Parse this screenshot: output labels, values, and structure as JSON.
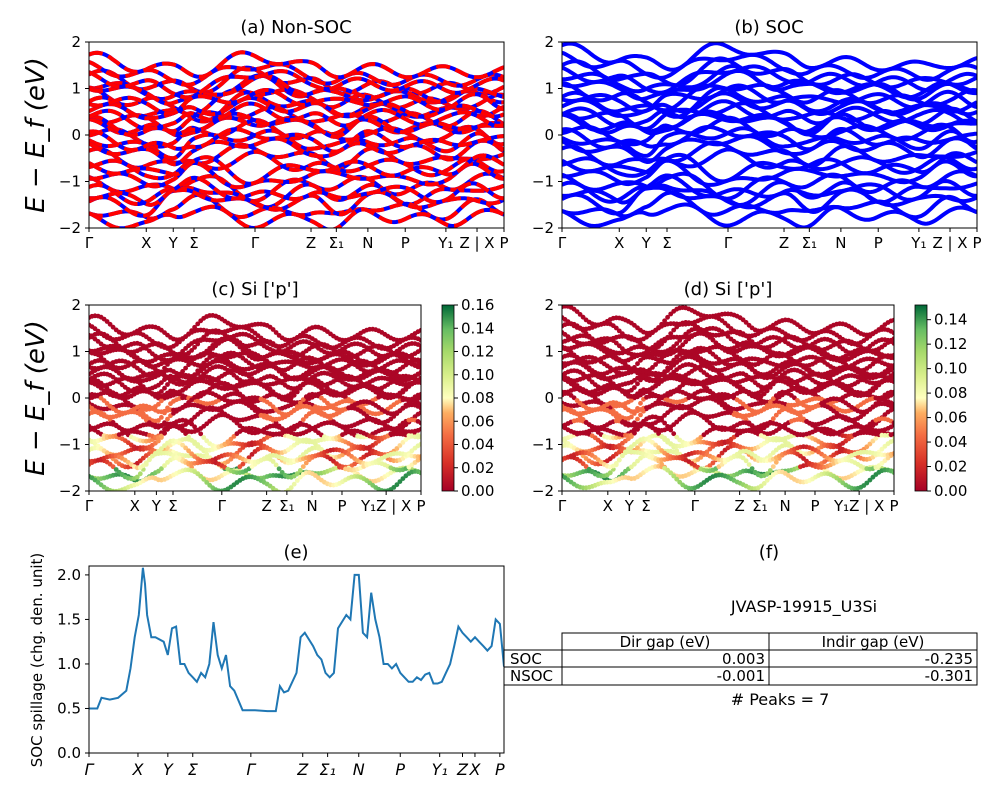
{
  "figure": {
    "energy_ylabel": "E − E_f (eV)",
    "spillage_ylabel": "SOC spillage (chg. den. unit)"
  },
  "panels": {
    "a": {
      "title": "(a) Non-SOC"
    },
    "b": {
      "title": "(b) SOC"
    },
    "c": {
      "title": "(c)  Si ['p']"
    },
    "d": {
      "title": "(d) Si ['p']"
    },
    "e": {
      "title": "(e)"
    },
    "f": {
      "title": "(f)"
    }
  },
  "kpath_labels": [
    "Γ",
    "X",
    "Y",
    "Σ",
    "Γ",
    "Z",
    "Σ₁",
    "N",
    "P",
    "Y₁",
    "Z | X",
    "P"
  ],
  "kpath_labels_cd": [
    "Γ",
    "X",
    "Y",
    "Σ",
    "Γ",
    "Z",
    "Σ₁",
    "N",
    "P",
    "Y₁Z | X",
    "P"
  ],
  "kpath_labels_e": [
    "Γ",
    "X",
    "Y",
    "Σ",
    "Γ",
    "Z",
    "Σ₁",
    "N",
    "P",
    "Y₁",
    "Z",
    "X",
    "P"
  ],
  "energy_ticks": [
    "2",
    "1",
    "0",
    "−1",
    "−2"
  ],
  "colorbar_c": [
    "0.00",
    "0.02",
    "0.04",
    "0.06",
    "0.08",
    "0.10",
    "0.12",
    "0.14",
    "0.16"
  ],
  "colorbar_d": [
    "0.00",
    "0.02",
    "0.04",
    "0.06",
    "0.08",
    "0.10",
    "0.12",
    "0.14"
  ],
  "spillage_yticks": [
    "0.0",
    "0.5",
    "1.0",
    "1.5",
    "2.0"
  ],
  "table": {
    "id": "JVASP-19915_U3Si",
    "headers": [
      "Dir gap (eV)",
      "Indir gap (eV)"
    ],
    "rows": [
      {
        "label": "SOC",
        "dir": "0.003",
        "indir": "-0.235"
      },
      {
        "label": "NSOC",
        "dir": "-0.001",
        "indir": "-0.301"
      }
    ],
    "peaks": "# Peaks = 7"
  },
  "colors": {
    "nonsoc_up": "#ff0000",
    "nonsoc_dn": "#0000ff",
    "soc": "#0000ff",
    "spillage": "#1f77b4"
  },
  "chart_data": [
    {
      "panel": "a",
      "type": "line",
      "title": "(a) Non-SOC",
      "ylabel": "E − E_f (eV)",
      "ylim": [
        -2,
        2
      ],
      "xticklabels": [
        "Γ",
        "X",
        "Y",
        "Σ",
        "Γ",
        "Z",
        "Σ₁",
        "N",
        "P",
        "Y₁",
        "Z | X",
        "P"
      ],
      "series": [
        {
          "name": "",
          "values": [
            1.3,
            1.1,
            1.05,
            1.0,
            1.35,
            1.1,
            1.0,
            1.05,
            1.0,
            1.0,
            1.0,
            1.0
          ]
        },
        {
          "name": "",
          "values": [
            0.9,
            0.7,
            0.6,
            0.55,
            1.0,
            0.8,
            0.7,
            0.75,
            0.7,
            0.65,
            0.7,
            0.75
          ]
        },
        {
          "name": "",
          "values": [
            0.4,
            0.3,
            0.2,
            0.35,
            0.5,
            0.4,
            0.3,
            0.4,
            0.35,
            0.3,
            0.4,
            0.3
          ]
        },
        {
          "name": "",
          "values": [
            0.1,
            -0.1,
            -0.2,
            0.05,
            0.2,
            0.0,
            -0.1,
            0.1,
            0.0,
            -0.05,
            0.1,
            -0.1
          ]
        },
        {
          "name": "",
          "values": [
            -0.4,
            -0.6,
            -0.7,
            -0.5,
            -0.3,
            -0.5,
            -0.6,
            -0.4,
            -0.5,
            -0.6,
            -0.4,
            -0.5
          ]
        },
        {
          "name": "",
          "values": [
            -1.0,
            -1.2,
            -1.1,
            -0.9,
            -1.3,
            -1.0,
            -1.1,
            -1.0,
            -1.2,
            -1.1,
            -0.9,
            -1.0
          ]
        },
        {
          "name": "",
          "values": [
            -1.6,
            -1.8,
            -1.5,
            -1.4,
            -1.7,
            -1.6,
            -1.8,
            -1.5,
            -1.6,
            -1.7,
            -1.5,
            -1.6
          ]
        }
      ]
    },
    {
      "panel": "b",
      "type": "line",
      "title": "(b) SOC",
      "ylim": [
        -2,
        2
      ],
      "xticklabels": [
        "Γ",
        "X",
        "Y",
        "Σ",
        "Γ",
        "Z",
        "Σ₁",
        "N",
        "P",
        "Y₁",
        "Z | X",
        "P"
      ],
      "series": [
        {
          "name": "",
          "values": [
            1.5,
            1.3,
            1.2,
            1.15,
            1.55,
            1.3,
            1.2,
            1.2,
            1.15,
            1.1,
            1.2,
            1.2
          ]
        },
        {
          "name": "",
          "values": [
            1.0,
            0.8,
            0.7,
            0.65,
            1.1,
            0.9,
            0.8,
            0.85,
            0.8,
            0.7,
            0.8,
            0.85
          ]
        },
        {
          "name": "",
          "values": [
            0.5,
            0.35,
            0.25,
            0.4,
            0.6,
            0.45,
            0.35,
            0.45,
            0.4,
            0.35,
            0.45,
            0.35
          ]
        },
        {
          "name": "",
          "values": [
            0.15,
            -0.05,
            -0.15,
            0.1,
            0.25,
            0.05,
            -0.05,
            0.15,
            0.05,
            0.0,
            0.15,
            -0.05
          ]
        },
        {
          "name": "",
          "values": [
            -0.35,
            -0.55,
            -0.65,
            -0.45,
            -0.25,
            -0.45,
            -0.55,
            -0.35,
            -0.45,
            -0.55,
            -0.35,
            -0.45
          ]
        },
        {
          "name": "",
          "values": [
            -0.95,
            -1.15,
            -1.05,
            -0.85,
            -1.25,
            -0.95,
            -1.05,
            -0.95,
            -1.15,
            -1.05,
            -0.85,
            -0.95
          ]
        },
        {
          "name": "",
          "values": [
            -1.55,
            -1.75,
            -1.45,
            -1.35,
            -1.65,
            -1.55,
            -1.75,
            -1.45,
            -1.55,
            -1.65,
            -1.45,
            -1.55
          ]
        }
      ]
    },
    {
      "panel": "c",
      "type": "scatter",
      "title": "(c)  Si ['p']",
      "ylabel": "E − E_f (eV)",
      "ylim": [
        -2,
        2
      ],
      "colorbar_range": [
        0,
        0.16
      ],
      "xticklabels": [
        "Γ",
        "X",
        "Y",
        "Σ",
        "Γ",
        "Z",
        "Σ₁",
        "N",
        "P",
        "Y₁Z | X",
        "P"
      ]
    },
    {
      "panel": "d",
      "type": "scatter",
      "title": "(d) Si ['p']",
      "ylim": [
        -2,
        2
      ],
      "colorbar_range": [
        0,
        0.15
      ],
      "xticklabels": [
        "Γ",
        "X",
        "Y",
        "Σ",
        "Γ",
        "Z",
        "Σ₁",
        "N",
        "P",
        "Y₁Z | X",
        "P"
      ]
    },
    {
      "panel": "e",
      "type": "line",
      "title": "(e)",
      "ylabel": "SOC spillage (chg. den. unit)",
      "ylim": [
        0,
        2.1
      ],
      "xticklabels": [
        "Γ",
        "X",
        "Y",
        "Σ",
        "Γ",
        "Z",
        "Σ₁",
        "N",
        "P",
        "Y₁",
        "Z",
        "X",
        "P"
      ],
      "x": [
        0,
        0.02,
        0.03,
        0.05,
        0.07,
        0.09,
        0.1,
        0.11,
        0.12,
        0.13,
        0.135,
        0.14,
        0.15,
        0.16,
        0.18,
        0.19,
        0.2,
        0.21,
        0.22,
        0.23,
        0.24,
        0.25,
        0.26,
        0.27,
        0.28,
        0.29,
        0.3,
        0.31,
        0.32,
        0.33,
        0.34,
        0.35,
        0.37,
        0.4,
        0.43,
        0.45,
        0.46,
        0.47,
        0.48,
        0.5,
        0.51,
        0.52,
        0.54,
        0.55,
        0.56,
        0.57,
        0.58,
        0.59,
        0.6,
        0.62,
        0.63,
        0.64,
        0.65,
        0.66,
        0.67,
        0.68,
        0.69,
        0.7,
        0.71,
        0.72,
        0.73,
        0.74,
        0.75,
        0.76,
        0.77,
        0.78,
        0.79,
        0.8,
        0.81,
        0.82,
        0.83,
        0.84,
        0.85,
        0.86,
        0.87,
        0.88,
        0.89,
        0.9,
        0.91,
        0.92,
        0.93,
        0.94,
        0.95,
        0.96,
        0.97,
        0.98,
        0.99,
        1.0
      ],
      "y": [
        0.5,
        0.5,
        0.62,
        0.6,
        0.62,
        0.7,
        0.95,
        1.3,
        1.55,
        2.08,
        1.9,
        1.55,
        1.3,
        1.3,
        1.25,
        1.1,
        1.4,
        1.42,
        1.0,
        1.0,
        0.9,
        0.85,
        0.8,
        0.9,
        0.85,
        1.0,
        1.47,
        1.1,
        0.95,
        1.1,
        0.75,
        0.7,
        0.48,
        0.48,
        0.47,
        0.47,
        0.75,
        0.68,
        0.7,
        0.9,
        1.3,
        1.35,
        1.2,
        1.1,
        1.05,
        0.9,
        0.85,
        0.9,
        1.4,
        1.55,
        1.5,
        2.0,
        2.0,
        1.35,
        1.3,
        1.8,
        1.5,
        1.3,
        1.0,
        1.0,
        0.95,
        1.0,
        0.9,
        0.85,
        0.8,
        0.8,
        0.85,
        0.82,
        0.88,
        0.9,
        0.78,
        0.78,
        0.8,
        0.9,
        1.0,
        1.2,
        1.42,
        1.35,
        1.3,
        1.25,
        1.3,
        1.25,
        1.2,
        1.15,
        1.2,
        1.5,
        1.45,
        0.97
      ]
    }
  ]
}
